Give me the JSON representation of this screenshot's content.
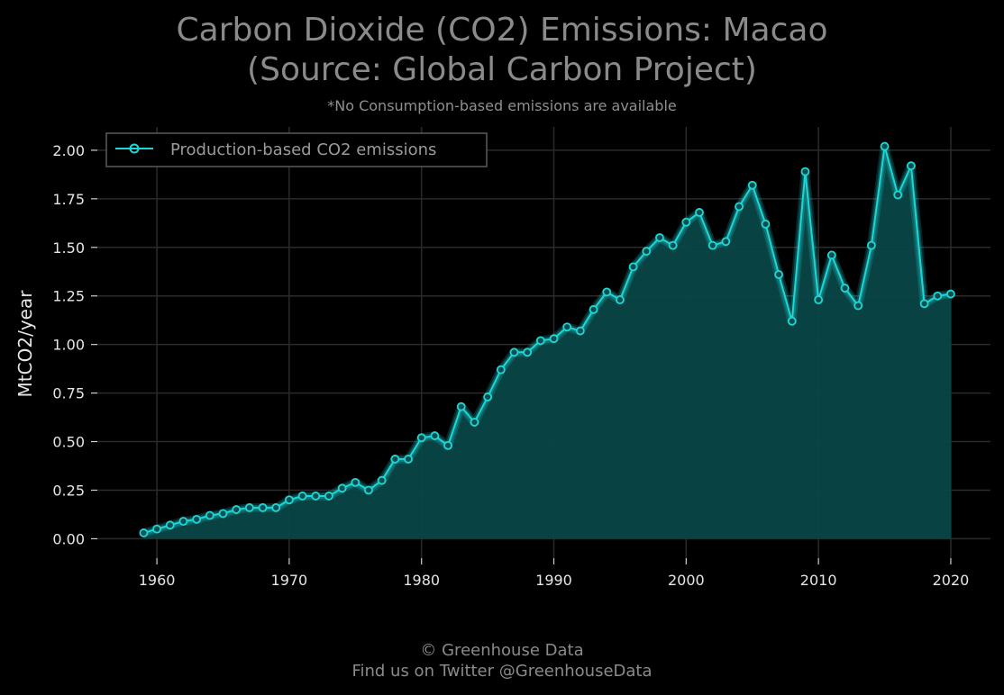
{
  "header": {
    "title_line1": "Carbon Dioxide (CO2) Emissions: Macao",
    "title_line2": "(Source: Global Carbon Project)",
    "subtitle": "*No Consumption-based emissions are available"
  },
  "footer": {
    "line1": "© Greenhouse Data",
    "line2": "Find us on Twitter @GreenhouseData"
  },
  "colors": {
    "background": "#000000",
    "line": "#1fd6d6",
    "fill": "#0a4646",
    "grid": "#2b2b2b",
    "text": "#e6e6e6",
    "title": "#8a8a8a"
  },
  "chart_data": {
    "type": "area",
    "title": "Carbon Dioxide (CO2) Emissions: Macao (Source: Global Carbon Project)",
    "xlabel": "",
    "ylabel": "MtCO2/year",
    "xlim": [
      1955.5,
      2023
    ],
    "ylim": [
      -0.1,
      2.12
    ],
    "xticks": [
      1960,
      1970,
      1980,
      1990,
      2000,
      2010,
      2020
    ],
    "yticks": [
      0.0,
      0.25,
      0.5,
      0.75,
      1.0,
      1.25,
      1.5,
      1.75,
      2.0
    ],
    "ytick_labels": [
      "0.00",
      "0.25",
      "0.50",
      "0.75",
      "1.00",
      "1.25",
      "1.50",
      "1.75",
      "2.00"
    ],
    "grid": true,
    "legend_position": "top-left",
    "series": [
      {
        "name": "Production-based CO2 emissions",
        "x": [
          1959,
          1960,
          1961,
          1962,
          1963,
          1964,
          1965,
          1966,
          1967,
          1968,
          1969,
          1970,
          1971,
          1972,
          1973,
          1974,
          1975,
          1976,
          1977,
          1978,
          1979,
          1980,
          1981,
          1982,
          1983,
          1984,
          1985,
          1986,
          1987,
          1988,
          1989,
          1990,
          1991,
          1992,
          1993,
          1994,
          1995,
          1996,
          1997,
          1998,
          1999,
          2000,
          2001,
          2002,
          2003,
          2004,
          2005,
          2006,
          2007,
          2008,
          2009,
          2010,
          2011,
          2012,
          2013,
          2014,
          2015,
          2016,
          2017,
          2018,
          2019,
          2020
        ],
        "values": [
          0.03,
          0.05,
          0.07,
          0.09,
          0.1,
          0.12,
          0.13,
          0.15,
          0.16,
          0.16,
          0.16,
          0.2,
          0.22,
          0.22,
          0.22,
          0.26,
          0.29,
          0.25,
          0.3,
          0.41,
          0.41,
          0.52,
          0.53,
          0.48,
          0.68,
          0.6,
          0.73,
          0.87,
          0.96,
          0.96,
          1.02,
          1.03,
          1.09,
          1.07,
          1.18,
          1.27,
          1.23,
          1.4,
          1.48,
          1.55,
          1.51,
          1.63,
          1.68,
          1.51,
          1.53,
          1.71,
          1.82,
          1.62,
          1.36,
          1.12,
          1.89,
          1.23,
          1.46,
          1.29,
          1.2,
          1.51,
          2.02,
          1.77,
          1.92,
          1.21,
          1.25,
          1.26
        ]
      }
    ]
  }
}
